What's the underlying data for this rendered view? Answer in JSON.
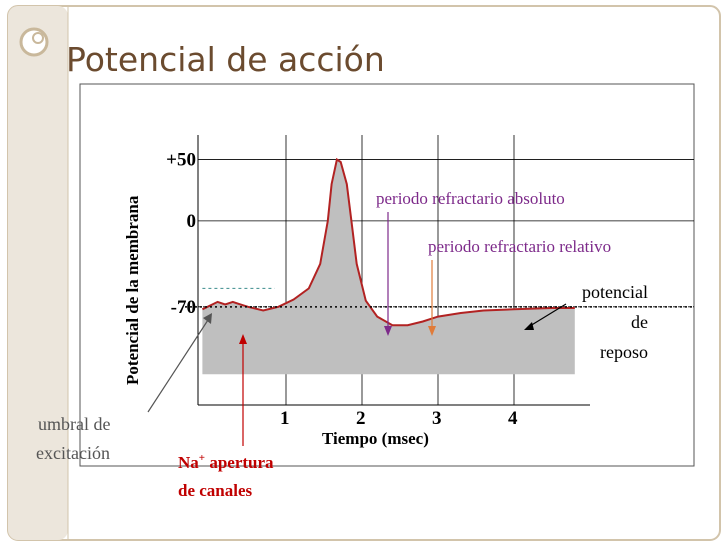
{
  "slide": {
    "title": "Potencial de acción",
    "accent_color": "#6b4b2f",
    "frame_color": "#c9b89b"
  },
  "chart_data": {
    "type": "line",
    "title": "",
    "xlabel": "Tiempo (msec)",
    "ylabel": "Potencial de la membrana",
    "x_ticks": [
      "1",
      "2",
      "3",
      "4"
    ],
    "y_ticks": [
      "+50",
      "0",
      "-70"
    ],
    "xlim": [
      0,
      5
    ],
    "ylim": [
      -150,
      70
    ],
    "grid": true,
    "series": [
      {
        "color": "#b22222",
        "fill": "#bfbfbf",
        "points": [
          [
            -0.1,
            -72
          ],
          [
            0.1,
            -66
          ],
          [
            0.2,
            -68
          ],
          [
            0.3,
            -66
          ],
          [
            0.4,
            -68
          ],
          [
            0.5,
            -70
          ],
          [
            0.7,
            -73
          ],
          [
            0.9,
            -70
          ],
          [
            1.1,
            -64
          ],
          [
            1.3,
            -55
          ],
          [
            1.45,
            -35
          ],
          [
            1.55,
            0
          ],
          [
            1.6,
            30
          ],
          [
            1.67,
            50
          ],
          [
            1.72,
            48
          ],
          [
            1.8,
            30
          ],
          [
            1.86,
            0
          ],
          [
            1.93,
            -35
          ],
          [
            2.05,
            -65
          ],
          [
            2.2,
            -78
          ],
          [
            2.4,
            -85
          ],
          [
            2.6,
            -85
          ],
          [
            2.8,
            -82
          ],
          [
            3.0,
            -78
          ],
          [
            3.3,
            -75
          ],
          [
            3.6,
            -73
          ],
          [
            4.0,
            -72
          ],
          [
            4.5,
            -71
          ],
          [
            4.8,
            -71
          ]
        ]
      }
    ],
    "annotations": [
      {
        "label": "periodo refractario absoluto",
        "color": "#7d2a8a",
        "x": 2.3,
        "y": -72
      },
      {
        "label": "periodo refractario relativo",
        "color": "#7d2a8a",
        "x": 3.0,
        "y": -78
      },
      {
        "label": "potencial de reposo",
        "lines": [
          "potencial",
          "de",
          "reposo"
        ],
        "color": "#000000",
        "x": 4.2,
        "y": -71
      },
      {
        "label": "umbral de excitación",
        "lines": [
          "umbral de",
          "excitación"
        ],
        "color": "#555555",
        "x": 0.0,
        "y": -55
      },
      {
        "label": "Na+ apertura de canales",
        "lines": [
          "Na",
          "+",
          " apertura",
          "de canales"
        ],
        "color": "#c00000",
        "x": 0.5,
        "y": -70
      }
    ]
  }
}
